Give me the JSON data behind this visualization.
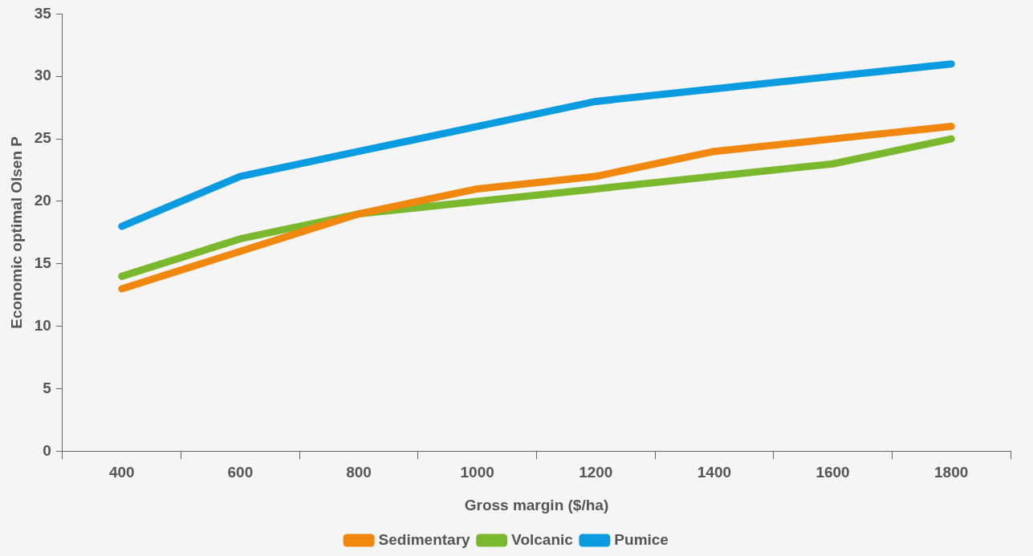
{
  "chart_data": {
    "type": "line",
    "xlabel": "Gross margin ($/ha)",
    "ylabel": "Economic optimal Olsen P",
    "categories": [
      "400",
      "600",
      "800",
      "1000",
      "1200",
      "1400",
      "1600",
      "1800"
    ],
    "series": [
      {
        "name": "Sedimentary",
        "color": "#f0870f",
        "values": [
          13,
          16,
          19,
          21,
          22,
          24,
          25,
          26
        ]
      },
      {
        "name": "Volcanic",
        "color": "#7ab82e",
        "values": [
          14,
          17,
          19,
          20,
          21,
          22,
          23,
          25
        ]
      },
      {
        "name": "Pumice",
        "color": "#0a9be0",
        "values": [
          18,
          22,
          24,
          26,
          28,
          29,
          30,
          31
        ]
      }
    ],
    "ylim": [
      0,
      35
    ],
    "yticks": [
      0,
      5,
      10,
      15,
      20,
      25,
      30,
      35
    ],
    "legend": "bottom",
    "marker": "none",
    "line_style": "solid"
  }
}
